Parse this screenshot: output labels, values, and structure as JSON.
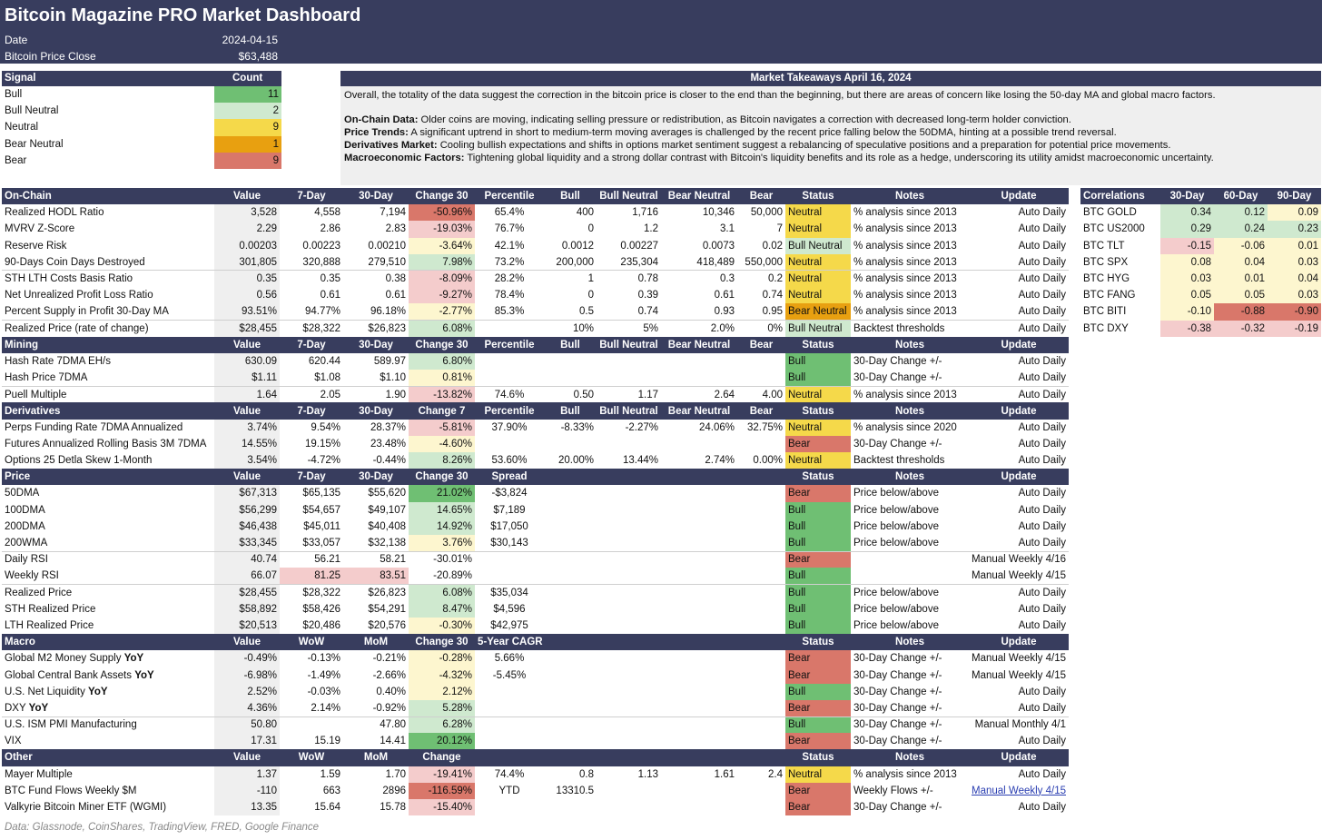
{
  "header": {
    "title": "Bitcoin Magazine PRO Market Dashboard",
    "date_label": "Date",
    "date_value": "2024-04-15",
    "price_label": "Bitcoin Price Close",
    "price_value": "$63,488"
  },
  "colors": {
    "navy": "#383d5e",
    "green": "#6fbf73",
    "light_green": "#cfe9cf",
    "yellow": "#f5d94a",
    "light_yellow": "#fdf6cf",
    "orange": "#e8a010",
    "red": "#d9776a",
    "light_red": "#f4cccc",
    "grey": "#efefef"
  },
  "signals": {
    "headers": [
      "Signal",
      "Count"
    ],
    "rows": [
      {
        "label": "Bull",
        "count": "11",
        "color": "#6fbf73"
      },
      {
        "label": "Bull Neutral",
        "count": "2",
        "color": "#cfe9cf"
      },
      {
        "label": "Neutral",
        "count": "9",
        "color": "#f5d94a"
      },
      {
        "label": "Bear Neutral",
        "count": "1",
        "color": "#e8a010"
      },
      {
        "label": "Bear",
        "count": "9",
        "color": "#d9776a"
      }
    ]
  },
  "takeaways": {
    "title": "Market Takeaways April 16, 2024",
    "overall": "Overall, the totality of the data suggest the correction in the bitcoin price is closer to the end than the beginning, but there are areas of concern like losing the 50-day MA and global macro factors.",
    "points": [
      {
        "label": "On-Chain Data:",
        "text": " Older coins are moving, indicating selling pressure or redistribution, as Bitcoin navigates a correction with decreased long-term holder conviction."
      },
      {
        "label": "Price Trends:",
        "text": " A significant uptrend in short to medium-term moving averages is challenged by the recent price falling below the 50DMA, hinting at a possible trend reversal."
      },
      {
        "label": "Derivatives Market:",
        "text": " Cooling bullish expectations and shifts in options market sentiment suggest a rebalancing of speculative positions and a preparation for potential price movements."
      },
      {
        "label": "Macroeconomic Factors:",
        "text": " Tightening global liquidity and a strong dollar contrast with Bitcoin's liquidity benefits and its role as a hedge, underscoring its utility amidst macroeconomic uncertainty."
      }
    ]
  },
  "sections": [
    {
      "headers": [
        "On-Chain",
        "Value",
        "7-Day",
        "30-Day",
        "Change 30",
        "Percentile",
        "Bull",
        "Bull Neutral",
        "Bear Neutral",
        "Bear",
        "Status",
        "Notes",
        "Update"
      ],
      "rows": [
        {
          "c": [
            "Realized HODL Ratio",
            "3,528",
            "4,558",
            "7,194",
            "-50.96%",
            "65.4%",
            "400",
            "1,716",
            "10,346",
            "50,000",
            "Neutral",
            "% analysis since 2013",
            "Auto Daily"
          ],
          "chg": "red",
          "st": "yellow"
        },
        {
          "c": [
            "MVRV Z-Score",
            "2.29",
            "2.86",
            "2.83",
            "-19.03%",
            "76.7%",
            "0",
            "1.2",
            "3.1",
            "7",
            "Neutral",
            "% analysis since 2013",
            "Auto Daily"
          ],
          "chg": "lred",
          "st": "yellow"
        },
        {
          "c": [
            "Reserve Risk",
            "0.00203",
            "0.00223",
            "0.00210",
            "-3.64%",
            "42.1%",
            "0.0012",
            "0.00227",
            "0.0073",
            "0.02",
            "Bull Neutral",
            "% analysis since 2013",
            "Auto Daily"
          ],
          "chg": "lyellow",
          "st": "lgreen"
        },
        {
          "c": [
            "90-Days Coin Days Destroyed",
            "301,805",
            "320,888",
            "279,510",
            "7.98%",
            "73.2%",
            "200,000",
            "235,304",
            "418,489",
            "550,000",
            "Neutral",
            "% analysis since 2013",
            "Auto Daily"
          ],
          "chg": "lgreen",
          "st": "yellow"
        },
        {
          "c": [
            "STH LTH Costs Basis Ratio",
            "0.35",
            "0.35",
            "0.38",
            "-8.09%",
            "28.2%",
            "1",
            "0.78",
            "0.3",
            "0.2",
            "Neutral",
            "% analysis since 2013",
            "Auto Daily"
          ],
          "chg": "lred",
          "st": "yellow",
          "sep": true
        },
        {
          "c": [
            "Net Unrealized Profit Loss Ratio",
            "0.56",
            "0.61",
            "0.61",
            "-9.27%",
            "78.4%",
            "0",
            "0.39",
            "0.61",
            "0.74",
            "Neutral",
            "% analysis since 2013",
            "Auto Daily"
          ],
          "chg": "lred",
          "st": "yellow"
        },
        {
          "c": [
            "Percent Supply in Profit 30-Day MA",
            "93.51%",
            "94.77%",
            "96.18%",
            "-2.77%",
            "85.3%",
            "0.5",
            "0.74",
            "0.93",
            "0.95",
            "Bear Neutral",
            "% analysis since 2013",
            "Auto Daily"
          ],
          "chg": "lyellow",
          "st": "orange"
        },
        {
          "c": [
            "Realized Price (rate of change)",
            "$28,455",
            "$28,322",
            "$26,823",
            "6.08%",
            "",
            "10%",
            "5%",
            "2.0%",
            "0%",
            "Bull Neutral",
            "Backtest thresholds",
            "Auto Daily"
          ],
          "chg": "lgreen",
          "st": "lgreen",
          "sep": true
        }
      ]
    },
    {
      "headers": [
        "Mining",
        "Value",
        "7-Day",
        "30-Day",
        "Change 30",
        "Percentile",
        "Bull",
        "Bull Neutral",
        "Bear Neutral",
        "Bear",
        "Status",
        "Notes",
        "Update"
      ],
      "rows": [
        {
          "c": [
            "Hash Rate 7DMA EH/s",
            "630.09",
            "620.44",
            "589.97",
            "6.80%",
            "",
            "",
            "",
            "",
            "",
            "Bull",
            "30-Day Change +/-",
            "Auto Daily"
          ],
          "chg": "lgreen",
          "st": "green"
        },
        {
          "c": [
            "Hash Price 7DMA",
            "$1.11",
            "$1.08",
            "$1.10",
            "0.81%",
            "",
            "",
            "",
            "",
            "",
            "Bull",
            "30-Day Change +/-",
            "Auto Daily"
          ],
          "chg": "lyellow",
          "st": "green"
        },
        {
          "c": [
            "Puell Multiple",
            "1.64",
            "2.05",
            "1.90",
            "-13.82%",
            "74.6%",
            "0.50",
            "1.17",
            "2.64",
            "4.00",
            "Neutral",
            "% analysis since 2013",
            "Auto Daily"
          ],
          "chg": "lred",
          "st": "yellow",
          "sep": true
        }
      ]
    },
    {
      "headers": [
        "Derivatives",
        "Value",
        "7-Day",
        "30-Day",
        "Change 7",
        "Percentile",
        "Bull",
        "Bull Neutral",
        "Bear Neutral",
        "Bear",
        "Status",
        "Notes",
        "Update"
      ],
      "rows": [
        {
          "c": [
            "Perps Funding Rate 7DMA Annualized",
            "3.74%",
            "9.54%",
            "28.37%",
            "-5.81%",
            "37.90%",
            "-8.33%",
            "-2.27%",
            "24.06%",
            "32.75%",
            "Neutral",
            "% analysis since 2020",
            "Auto Daily"
          ],
          "chg": "lred",
          "st": "yellow"
        },
        {
          "c": [
            "Futures Annualized Rolling Basis 3M 7DMA",
            "14.55%",
            "19.15%",
            "23.48%",
            "-4.60%",
            "",
            "",
            "",
            "",
            "",
            "Bear",
            "30-Day Change +/-",
            "Auto Daily"
          ],
          "chg": "lyellow",
          "st": "red"
        },
        {
          "c": [
            "Options 25 Detla Skew 1-Month",
            "3.54%",
            "-4.72%",
            "-0.44%",
            "8.26%",
            "53.60%",
            "20.00%",
            "13.44%",
            "2.74%",
            "0.00%",
            "Neutral",
            "Backtest thresholds",
            "Auto Daily"
          ],
          "chg": "lgreen",
          "st": "yellow"
        }
      ]
    },
    {
      "headers": [
        "Price",
        "Value",
        "7-Day",
        "30-Day",
        "Change 30",
        "Spread",
        "",
        "",
        "",
        "",
        "Status",
        "Notes",
        "Update"
      ],
      "rows": [
        {
          "c": [
            "50DMA",
            "$67,313",
            "$65,135",
            "$55,620",
            "21.02%",
            "-$3,824",
            "",
            "",
            "",
            "",
            "Bear",
            "Price below/above",
            "Auto Daily"
          ],
          "chg": "green",
          "st": "red"
        },
        {
          "c": [
            "100DMA",
            "$56,299",
            "$54,657",
            "$49,107",
            "14.65%",
            "$7,189",
            "",
            "",
            "",
            "",
            "Bull",
            "Price below/above",
            "Auto Daily"
          ],
          "chg": "lgreen",
          "st": "green"
        },
        {
          "c": [
            "200DMA",
            "$46,438",
            "$45,011",
            "$40,408",
            "14.92%",
            "$17,050",
            "",
            "",
            "",
            "",
            "Bull",
            "Price below/above",
            "Auto Daily"
          ],
          "chg": "lgreen",
          "st": "green"
        },
        {
          "c": [
            "200WMA",
            "$33,345",
            "$33,057",
            "$32,138",
            "3.76%",
            "$30,143",
            "",
            "",
            "",
            "",
            "Bull",
            "Price below/above",
            "Auto Daily"
          ],
          "chg": "lyellow",
          "st": "green"
        },
        {
          "c": [
            "Daily RSI",
            "40.74",
            "56.21",
            "58.21",
            "-30.01%",
            "",
            "",
            "",
            "",
            "",
            "Bear",
            "",
            "Manual Weekly 4/16"
          ],
          "chg": "none",
          "st": "red",
          "sep": true
        },
        {
          "c": [
            "Weekly RSI",
            "66.07",
            "81.25",
            "83.51",
            "-20.89%",
            "",
            "",
            "",
            "",
            "",
            "Bull",
            "",
            "Manual Weekly 4/15"
          ],
          "chg": "none",
          "st": "green",
          "d7": "lred",
          "d30": "lred"
        },
        {
          "c": [
            "Realized Price",
            "$28,455",
            "$28,322",
            "$26,823",
            "6.08%",
            "$35,034",
            "",
            "",
            "",
            "",
            "Bull",
            "Price below/above",
            "Auto Daily"
          ],
          "chg": "lgreen",
          "st": "green",
          "sep": true
        },
        {
          "c": [
            "STH Realized Price",
            "$58,892",
            "$58,426",
            "$54,291",
            "8.47%",
            "$4,596",
            "",
            "",
            "",
            "",
            "Bull",
            "Price below/above",
            "Auto Daily"
          ],
          "chg": "lgreen",
          "st": "green"
        },
        {
          "c": [
            "LTH Realized Price",
            "$20,513",
            "$20,486",
            "$20,576",
            "-0.30%",
            "$42,975",
            "",
            "",
            "",
            "",
            "Bull",
            "Price below/above",
            "Auto Daily"
          ],
          "chg": "lyellow",
          "st": "green"
        }
      ]
    },
    {
      "headers": [
        "Macro",
        "Value",
        "WoW",
        "MoM",
        "Change 30",
        "5-Year CAGR",
        "",
        "",
        "",
        "",
        "Status",
        "Notes",
        "Update"
      ],
      "rows": [
        {
          "c": [
            "Global M2 Money Supply ",
            "-0.49%",
            "-0.13%",
            "-0.21%",
            "-0.28%",
            "5.66%",
            "",
            "",
            "",
            "",
            "Bear",
            "30-Day Change +/-",
            "Manual Weekly 4/15"
          ],
          "bold": "YoY",
          "chg": "lyellow",
          "st": "red"
        },
        {
          "c": [
            "Global Central Bank Assets ",
            "-6.98%",
            "-1.49%",
            "-2.66%",
            "-4.32%",
            "-5.45%",
            "",
            "",
            "",
            "",
            "Bear",
            "30-Day Change +/-",
            "Manual Weekly 4/15"
          ],
          "bold": "YoY",
          "chg": "lyellow",
          "st": "red"
        },
        {
          "c": [
            "U.S. Net Liquidity ",
            "2.52%",
            "-0.03%",
            "0.40%",
            "2.12%",
            "",
            "",
            "",
            "",
            "",
            "Bull",
            "30-Day Change +/-",
            "Auto Daily"
          ],
          "bold": "YoY",
          "chg": "lyellow",
          "st": "green"
        },
        {
          "c": [
            "DXY ",
            "4.36%",
            "2.14%",
            "-0.92%",
            "5.28%",
            "",
            "",
            "",
            "",
            "",
            "Bear",
            "30-Day Change +/-",
            "Auto Daily"
          ],
          "bold": "YoY",
          "chg": "lgreen",
          "st": "red"
        },
        {
          "c": [
            "U.S. ISM PMI Manufacturing",
            "50.80",
            "",
            "47.80",
            "6.28%",
            "",
            "",
            "",
            "",
            "",
            "Bull",
            "30-Day Change +/-",
            "Manual Monthly 4/1"
          ],
          "chg": "lgreen",
          "st": "green",
          "sep": true
        },
        {
          "c": [
            "VIX",
            "17.31",
            "15.19",
            "14.41",
            "20.12%",
            "",
            "",
            "",
            "",
            "",
            "Bear",
            "30-Day Change +/-",
            "Auto Daily"
          ],
          "chg": "green",
          "st": "red"
        }
      ]
    },
    {
      "headers": [
        "Other",
        "Value",
        "WoW",
        "MoM",
        "Change",
        "",
        "",
        "",
        "",
        "",
        "Status",
        "Notes",
        "Update"
      ],
      "rows": [
        {
          "c": [
            "Mayer Multiple",
            "1.37",
            "1.59",
            "1.70",
            "-19.41%",
            "74.4%",
            "0.8",
            "1.13",
            "1.61",
            "2.4",
            "Neutral",
            "% analysis since 2013",
            "Auto Daily"
          ],
          "chg": "lred",
          "st": "yellow"
        },
        {
          "c": [
            "BTC Fund Flows Weekly $M",
            "-110",
            "663",
            "2896",
            "-116.59%",
            "YTD",
            "13310.5",
            "",
            "",
            "",
            "Bear",
            "Weekly Flows +/-",
            "Manual Weekly 4/15"
          ],
          "chg": "red",
          "st": "red",
          "link": true
        },
        {
          "c": [
            "Valkyrie Bitcoin Miner ETF (WGMI)",
            "13.35",
            "15.64",
            "15.78",
            "-15.40%",
            "",
            "",
            "",
            "",
            "",
            "Bear",
            "30-Day Change +/-",
            "Auto Daily"
          ],
          "chg": "lred",
          "st": "red"
        }
      ]
    }
  ],
  "correlations": {
    "headers": [
      "Correlations",
      "30-Day",
      "60-Day",
      "90-Day"
    ],
    "rows": [
      {
        "c": [
          "BTC GOLD",
          "0.34",
          "0.12",
          "0.09"
        ],
        "col": [
          "lgreen",
          "lgreen",
          "lyellow"
        ]
      },
      {
        "c": [
          "BTC US2000",
          "0.29",
          "0.24",
          "0.23"
        ],
        "col": [
          "lgreen",
          "lgreen",
          "lgreen"
        ]
      },
      {
        "c": [
          "BTC TLT",
          "-0.15",
          "-0.06",
          "0.01"
        ],
        "col": [
          "lred",
          "lyellow",
          "lyellow"
        ]
      },
      {
        "c": [
          "BTC SPX",
          "0.08",
          "0.04",
          "0.03"
        ],
        "col": [
          "lyellow",
          "lyellow",
          "lyellow"
        ]
      },
      {
        "c": [
          "BTC HYG",
          "0.03",
          "0.01",
          "0.04"
        ],
        "col": [
          "lyellow",
          "lyellow",
          "lyellow"
        ]
      },
      {
        "c": [
          "BTC FANG",
          "0.05",
          "0.05",
          "0.03"
        ],
        "col": [
          "lyellow",
          "lyellow",
          "lyellow"
        ]
      },
      {
        "c": [
          "BTC BITI",
          "-0.10",
          "-0.88",
          "-0.90"
        ],
        "col": [
          "lyellow",
          "red",
          "red"
        ]
      },
      {
        "c": [
          "BTC DXY",
          "-0.38",
          "-0.32",
          "-0.19"
        ],
        "col": [
          "lred",
          "lred",
          "lred"
        ]
      }
    ]
  },
  "footer": "Data: Glassnode, CoinShares, TradingView, FRED, Google Finance"
}
